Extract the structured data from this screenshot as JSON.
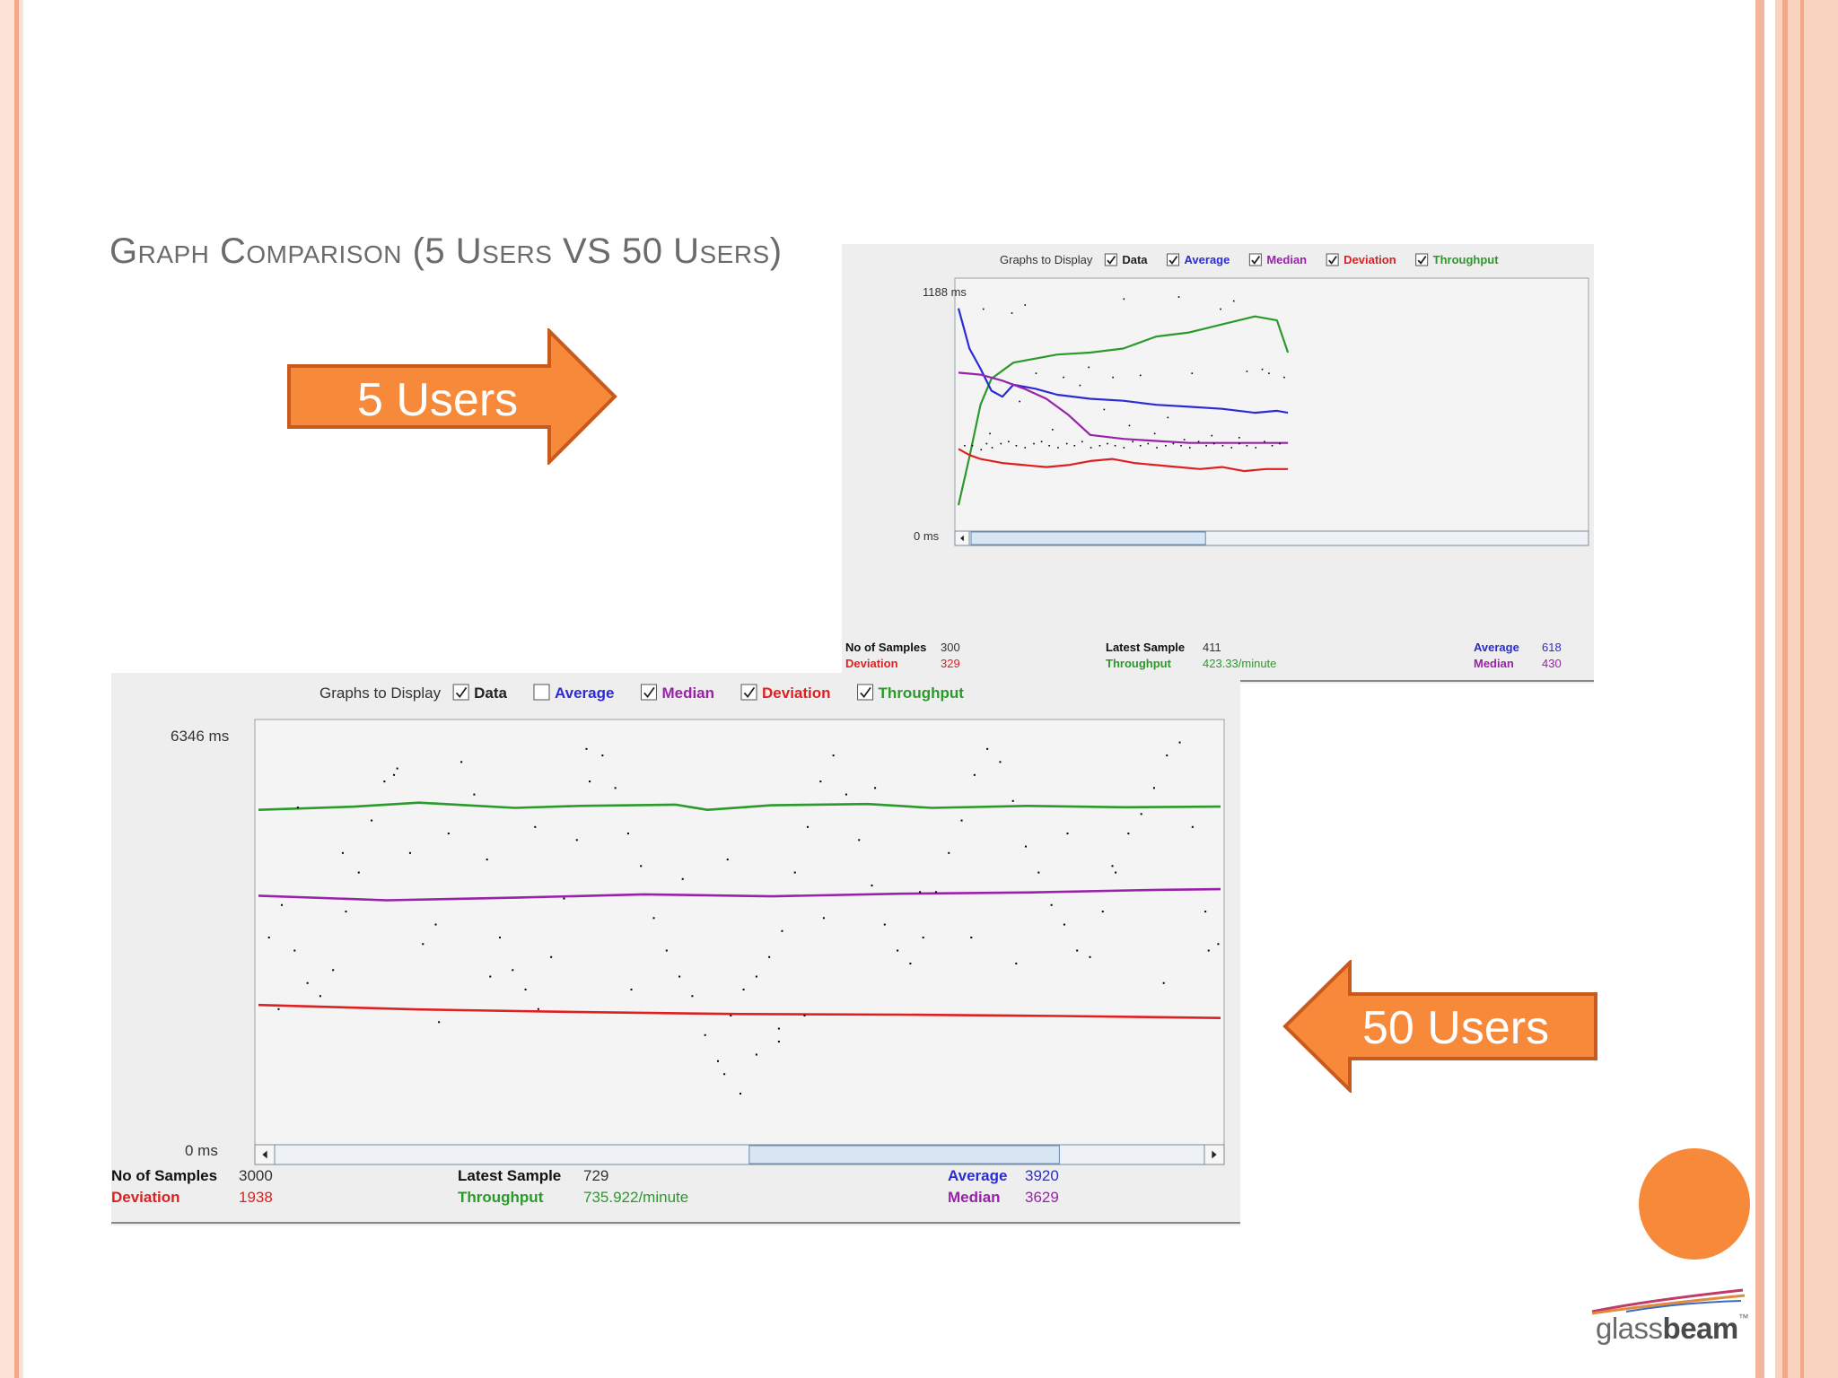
{
  "slide": {
    "title": "Graph Comparison (5 Users VS 50 Users)",
    "arrow_small_label": "5 Users",
    "arrow_large_label": "50 Users",
    "logo_text_light": "glass",
    "logo_text_bold": "beam",
    "logo_tm": "™"
  },
  "colors": {
    "accent_orange": "#f7893b",
    "arrow_border": "#c85a1e",
    "data": "#000000",
    "average": "#2b2bd6",
    "median": "#9922aa",
    "deviation": "#e02020",
    "throughput": "#2a9a2a"
  },
  "chart_data": [
    {
      "type": "line",
      "graphs_to_display_label": "Graphs to Display",
      "legend": [
        {
          "label": "Data",
          "checked": true
        },
        {
          "label": "Average",
          "checked": true
        },
        {
          "label": "Median",
          "checked": true
        },
        {
          "label": "Deviation",
          "checked": true
        },
        {
          "label": "Throughput",
          "checked": true
        }
      ],
      "y_max_label": "1188 ms",
      "y_min_label": "0 ms",
      "ylim": [
        0,
        1188
      ],
      "x_samples": 300,
      "stats": {
        "samples_label": "No of Samples",
        "samples_value": "300",
        "latest_label": "Latest Sample",
        "latest_value": "411",
        "average_label": "Average",
        "average_value": "618",
        "deviation_label": "Deviation",
        "deviation_value": "329",
        "throughput_label": "Throughput",
        "throughput_value": "423.33/minute",
        "median_label": "Median",
        "median_value": "430"
      },
      "series": [
        {
          "key": "throughput",
          "x": [
            0,
            10,
            20,
            30,
            50,
            70,
            90,
            120,
            150,
            180,
            210,
            240,
            270,
            290,
            300
          ],
          "y": [
            120,
            360,
            620,
            750,
            830,
            850,
            870,
            880,
            900,
            960,
            980,
            1020,
            1060,
            1040,
            880
          ]
        },
        {
          "key": "average",
          "x": [
            0,
            5,
            10,
            20,
            30,
            40,
            50,
            70,
            90,
            120,
            150,
            180,
            210,
            240,
            270,
            290,
            300
          ],
          "y": [
            1100,
            1000,
            900,
            800,
            690,
            660,
            720,
            700,
            670,
            650,
            640,
            620,
            610,
            600,
            580,
            590,
            580
          ]
        },
        {
          "key": "median",
          "x": [
            0,
            20,
            40,
            60,
            80,
            100,
            120,
            150,
            180,
            210,
            240,
            270,
            300
          ],
          "y": [
            780,
            770,
            740,
            700,
            650,
            570,
            470,
            450,
            440,
            430,
            430,
            430,
            430
          ]
        },
        {
          "key": "deviation",
          "x": [
            0,
            10,
            20,
            40,
            60,
            80,
            100,
            120,
            140,
            160,
            180,
            200,
            220,
            240,
            260,
            280,
            300
          ],
          "y": [
            400,
            370,
            350,
            330,
            320,
            310,
            320,
            340,
            350,
            330,
            320,
            310,
            300,
            310,
            290,
            300,
            300
          ]
        },
        {
          "key": "data",
          "x": [
            5,
            12,
            20,
            25,
            30,
            38,
            45,
            52,
            60,
            68,
            75,
            82,
            90,
            98,
            105,
            112,
            120,
            128,
            135,
            142,
            150,
            158,
            165,
            172,
            180,
            188,
            195,
            202,
            210,
            218,
            225,
            232,
            240,
            248,
            255,
            262,
            270,
            278,
            285,
            292,
            22,
            48,
            70,
            95,
            118,
            140,
            165,
            190,
            212,
            238,
            262,
            282,
            28,
            55,
            85,
            110,
            132,
            155,
            178,
            205,
            230,
            255,
            276,
            296,
            60,
            150,
            200,
            250
          ],
          "y": [
            420,
            420,
            400,
            430,
            410,
            430,
            440,
            420,
            410,
            430,
            440,
            420,
            410,
            430,
            420,
            440,
            410,
            420,
            430,
            420,
            410,
            440,
            420,
            430,
            410,
            420,
            430,
            420,
            410,
            440,
            420,
            430,
            420,
            410,
            430,
            420,
            410,
            440,
            420,
            430,
            1100,
            1080,
            780,
            760,
            810,
            760,
            770,
            560,
            780,
            1100,
            790,
            780,
            480,
            640,
            500,
            720,
            600,
            520,
            480,
            450,
            470,
            460,
            800,
            760,
            1120,
            1150,
            1160,
            1140
          ]
        }
      ]
    },
    {
      "type": "line",
      "graphs_to_display_label": "Graphs to Display",
      "legend": [
        {
          "label": "Data",
          "checked": true
        },
        {
          "label": "Average",
          "checked": false
        },
        {
          "label": "Median",
          "checked": true
        },
        {
          "label": "Deviation",
          "checked": true
        },
        {
          "label": "Throughput",
          "checked": true
        }
      ],
      "y_max_label": "6346 ms",
      "y_min_label": "0 ms",
      "ylim": [
        0,
        6346
      ],
      "x_samples": 3000,
      "stats": {
        "samples_label": "No of Samples",
        "samples_value": "3000",
        "latest_label": "Latest Sample",
        "latest_value": "729",
        "average_label": "Average",
        "average_value": "3920",
        "deviation_label": "Deviation",
        "deviation_value": "1938",
        "throughput_label": "Throughput",
        "throughput_value": "735.922/minute",
        "median_label": "Median",
        "median_value": "3629"
      },
      "series": [
        {
          "key": "throughput",
          "x": [
            0,
            300,
            500,
            800,
            1000,
            1300,
            1400,
            1600,
            1900,
            2100,
            2400,
            2700,
            3000
          ],
          "y": [
            5150,
            5200,
            5260,
            5180,
            5210,
            5230,
            5150,
            5220,
            5240,
            5180,
            5210,
            5190,
            5200
          ]
        },
        {
          "key": "median",
          "x": [
            0,
            400,
            800,
            1200,
            1600,
            2000,
            2400,
            2800,
            3000
          ],
          "y": [
            3830,
            3760,
            3800,
            3850,
            3820,
            3860,
            3880,
            3920,
            3930
          ]
        },
        {
          "key": "deviation",
          "x": [
            0,
            500,
            1000,
            1500,
            2000,
            2500,
            3000
          ],
          "y": [
            2150,
            2080,
            2040,
            2010,
            2000,
            1980,
            1950
          ]
        },
        {
          "key": "data",
          "x": [
            30,
            70,
            110,
            150,
            190,
            230,
            270,
            310,
            350,
            390,
            430,
            470,
            510,
            550,
            590,
            630,
            670,
            710,
            750,
            790,
            830,
            870,
            910,
            950,
            990,
            1030,
            1070,
            1110,
            1150,
            1190,
            1230,
            1270,
            1310,
            1350,
            1390,
            1430,
            1470,
            1510,
            1550,
            1590,
            1630,
            1670,
            1710,
            1750,
            1790,
            1830,
            1870,
            1910,
            1950,
            1990,
            2030,
            2070,
            2110,
            2150,
            2190,
            2230,
            2270,
            2310,
            2350,
            2390,
            2430,
            2470,
            2510,
            2550,
            2590,
            2630,
            2670,
            2710,
            2750,
            2790,
            2830,
            2870,
            2910,
            2950,
            2990,
            60,
            260,
            560,
            860,
            1160,
            1460,
            1760,
            2060,
            2360,
            2660,
            2960,
            120,
            420,
            720,
            1020,
            1320,
            1620,
            1920,
            2220,
            2520,
            2820,
            1500,
            1450,
            1550,
            1620,
            1700
          ],
          "y": [
            3200,
            3700,
            3000,
            2500,
            2300,
            2700,
            3600,
            4200,
            5000,
            5600,
            5800,
            4500,
            3100,
            3400,
            4800,
            5900,
            5400,
            4400,
            3200,
            2700,
            2400,
            2100,
            2900,
            3800,
            4700,
            5600,
            6000,
            5500,
            4800,
            4300,
            3500,
            3000,
            2600,
            2300,
            1700,
            1300,
            2000,
            2400,
            2600,
            2900,
            3300,
            4200,
            4900,
            5600,
            6000,
            5400,
            4700,
            4000,
            3400,
            3000,
            2800,
            3200,
            3900,
            4500,
            5000,
            5700,
            6100,
            5900,
            5300,
            4600,
            4200,
            3700,
            3400,
            3000,
            2900,
            3600,
            4200,
            4800,
            5100,
            5500,
            6000,
            6200,
            4900,
            3600,
            3100,
            2100,
            4500,
            1900,
            4900,
            2400,
            4400,
            3500,
            3900,
            2800,
            4300,
            3000,
            5200,
            5700,
            2600,
            6100,
            4100,
            1800,
            5500,
            3200,
            4800,
            2500,
            800,
            1100,
            1400,
            1600,
            2000
          ]
        }
      ]
    }
  ]
}
